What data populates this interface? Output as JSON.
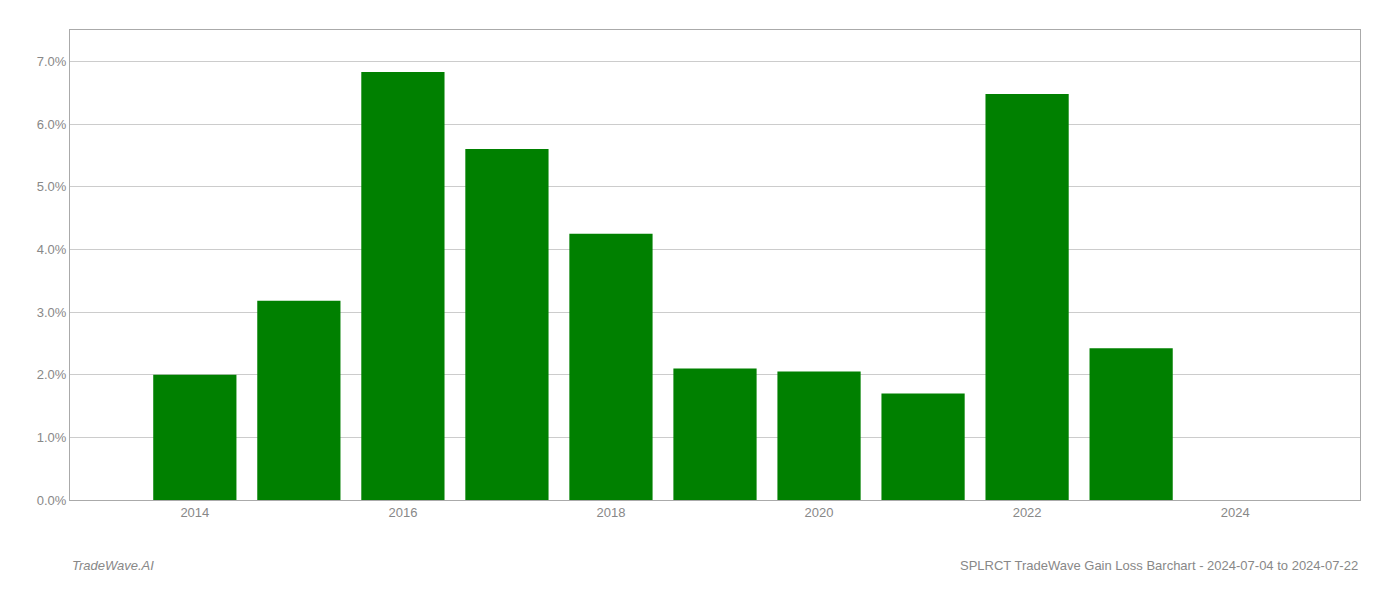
{
  "chart_data": {
    "type": "bar",
    "x": [
      2014,
      2015,
      2016,
      2017,
      2018,
      2019,
      2020,
      2021,
      2022,
      2023
    ],
    "values": [
      0.02,
      0.0318,
      0.0683,
      0.056,
      0.0425,
      0.021,
      0.0205,
      0.017,
      0.0648,
      0.0242
    ],
    "color": "#008000",
    "xlim": [
      2012.8,
      2025.2
    ],
    "xticks": [
      2014,
      2016,
      2018,
      2020,
      2022,
      2024
    ],
    "ylim": [
      0,
      0.075
    ],
    "yticks": [
      {
        "value": 0.0,
        "label": "0.0%"
      },
      {
        "value": 0.01,
        "label": "1.0%"
      },
      {
        "value": 0.02,
        "label": "2.0%"
      },
      {
        "value": 0.03,
        "label": "3.0%"
      },
      {
        "value": 0.04,
        "label": "4.0%"
      },
      {
        "value": 0.05,
        "label": "5.0%"
      },
      {
        "value": 0.06,
        "label": "6.0%"
      },
      {
        "value": 0.07,
        "label": "7.0%"
      }
    ],
    "grid": true,
    "annotations": [
      "TradeWave.AI",
      "SPLRCT TradeWave Gain Loss Barchart - 2024-07-04 to 2024-07-22"
    ]
  }
}
